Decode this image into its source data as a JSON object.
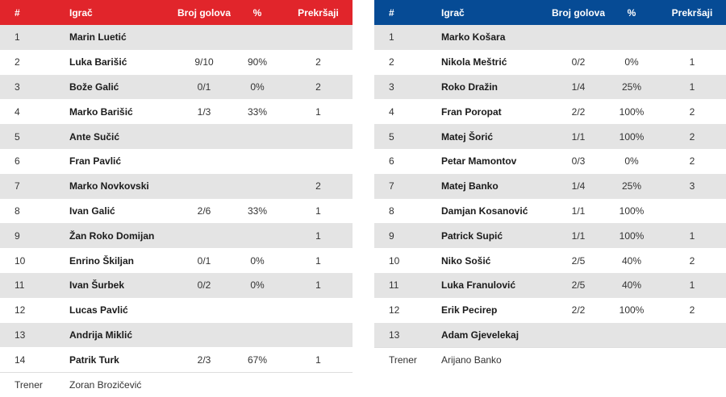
{
  "headers": {
    "num": "#",
    "player": "Igrač",
    "goals": "Broj golova",
    "pct": "%",
    "fouls": "Prekršaji"
  },
  "left": {
    "color": "#e1252b",
    "players": [
      {
        "num": "1",
        "name": "Marin Luetić",
        "goals": "",
        "pct": "",
        "fouls": ""
      },
      {
        "num": "2",
        "name": "Luka Barišić",
        "goals": "9/10",
        "pct": "90%",
        "fouls": "2"
      },
      {
        "num": "3",
        "name": "Bože Galić",
        "goals": "0/1",
        "pct": "0%",
        "fouls": "2"
      },
      {
        "num": "4",
        "name": "Marko Barišić",
        "goals": "1/3",
        "pct": "33%",
        "fouls": "1"
      },
      {
        "num": "5",
        "name": "Ante Sučić",
        "goals": "",
        "pct": "",
        "fouls": ""
      },
      {
        "num": "6",
        "name": "Fran Pavlić",
        "goals": "",
        "pct": "",
        "fouls": ""
      },
      {
        "num": "7",
        "name": "Marko Novkovski",
        "goals": "",
        "pct": "",
        "fouls": "2"
      },
      {
        "num": "8",
        "name": "Ivan Galić",
        "goals": "2/6",
        "pct": "33%",
        "fouls": "1"
      },
      {
        "num": "9",
        "name": "Žan Roko Domijan",
        "goals": "",
        "pct": "",
        "fouls": "1"
      },
      {
        "num": "10",
        "name": "Enrino Škiljan",
        "goals": "0/1",
        "pct": "0%",
        "fouls": "1"
      },
      {
        "num": "11",
        "name": "Ivan Šurbek",
        "goals": "0/2",
        "pct": "0%",
        "fouls": "1"
      },
      {
        "num": "12",
        "name": "Lucas Pavlić",
        "goals": "",
        "pct": "",
        "fouls": ""
      },
      {
        "num": "13",
        "name": "Andrija Miklić",
        "goals": "",
        "pct": "",
        "fouls": ""
      },
      {
        "num": "14",
        "name": "Patrik Turk",
        "goals": "2/3",
        "pct": "67%",
        "fouls": "1"
      }
    ],
    "coach_label": "Trener",
    "coach_name": "Zoran Brozičević"
  },
  "right": {
    "color": "#064b95",
    "players": [
      {
        "num": "1",
        "name": "Marko Košara",
        "goals": "",
        "pct": "",
        "fouls": ""
      },
      {
        "num": "2",
        "name": "Nikola Meštrić",
        "goals": "0/2",
        "pct": "0%",
        "fouls": "1"
      },
      {
        "num": "3",
        "name": "Roko Dražin",
        "goals": "1/4",
        "pct": "25%",
        "fouls": "1"
      },
      {
        "num": "4",
        "name": "Fran Poropat",
        "goals": "2/2",
        "pct": "100%",
        "fouls": "2"
      },
      {
        "num": "5",
        "name": "Matej Šorić",
        "goals": "1/1",
        "pct": "100%",
        "fouls": "2"
      },
      {
        "num": "6",
        "name": "Petar Mamontov",
        "goals": "0/3",
        "pct": "0%",
        "fouls": "2"
      },
      {
        "num": "7",
        "name": "Matej Banko",
        "goals": "1/4",
        "pct": "25%",
        "fouls": "3"
      },
      {
        "num": "8",
        "name": "Damjan Kosanović",
        "goals": "1/1",
        "pct": "100%",
        "fouls": ""
      },
      {
        "num": "9",
        "name": "Patrick Supić",
        "goals": "1/1",
        "pct": "100%",
        "fouls": "1"
      },
      {
        "num": "10",
        "name": "Niko Sošić",
        "goals": "2/5",
        "pct": "40%",
        "fouls": "2"
      },
      {
        "num": "11",
        "name": "Luka Franulović",
        "goals": "2/5",
        "pct": "40%",
        "fouls": "1"
      },
      {
        "num": "12",
        "name": "Erik Pecirep",
        "goals": "2/2",
        "pct": "100%",
        "fouls": "2"
      },
      {
        "num": "13",
        "name": "Adam Gjevelekaj",
        "goals": "",
        "pct": "",
        "fouls": ""
      }
    ],
    "coach_label": "Trener",
    "coach_name": "Arijano Banko"
  }
}
